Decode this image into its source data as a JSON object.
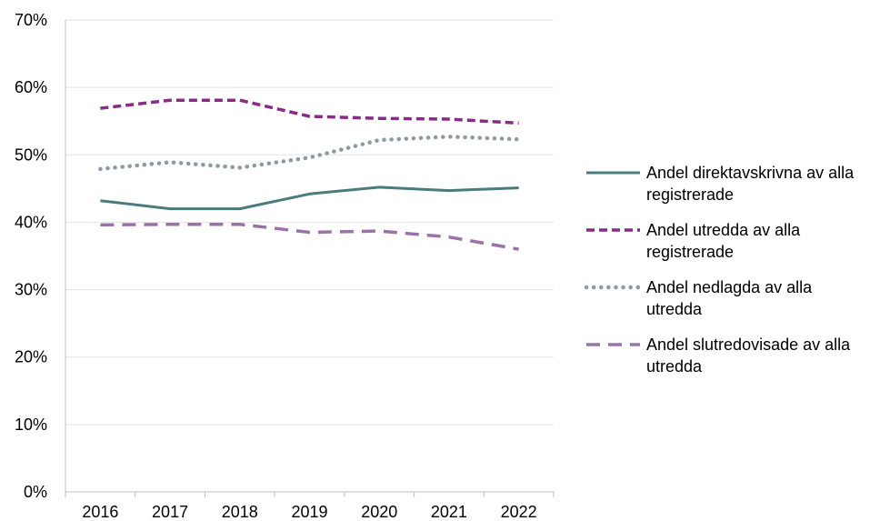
{
  "chart_data": {
    "type": "line",
    "title": "",
    "xlabel": "",
    "ylabel": "",
    "categories": [
      "2016",
      "2017",
      "2018",
      "2019",
      "2020",
      "2021",
      "2022"
    ],
    "ylim": [
      0,
      70
    ],
    "yticks": [
      "0%",
      "10%",
      "20%",
      "30%",
      "40%",
      "50%",
      "60%",
      "70%"
    ],
    "grid": true,
    "legend_position": "right",
    "series": [
      {
        "name": "Andel direktavskrivna av alla registrerade",
        "legend_lines": [
          "Andel direktavskrivna av alla",
          "registrerade"
        ],
        "values": [
          43.2,
          42.0,
          42.0,
          44.2,
          45.2,
          44.7,
          45.1
        ],
        "color": "#4a7c7b",
        "style": "solid"
      },
      {
        "name": "Andel utredda av alla registrerade",
        "legend_lines": [
          "Andel utredda av alla",
          "registrerade"
        ],
        "values": [
          56.9,
          58.1,
          58.1,
          55.7,
          55.4,
          55.3,
          54.7
        ],
        "color": "#8a2a86",
        "style": "short-dash"
      },
      {
        "name": "Andel nedlagda av alla utredda",
        "legend_lines": [
          "Andel nedlagda av alla",
          "utredda"
        ],
        "values": [
          47.9,
          48.9,
          48.1,
          49.6,
          52.2,
          52.7,
          52.3
        ],
        "color": "#8c9aa6",
        "style": "dotted"
      },
      {
        "name": "Andel slutredovisade av alla utredda",
        "legend_lines": [
          "Andel slutredovisade av alla",
          "utredda"
        ],
        "values": [
          39.6,
          39.7,
          39.7,
          38.5,
          38.7,
          37.8,
          36.0
        ],
        "color": "#9b72a8",
        "style": "long-dash"
      }
    ]
  }
}
